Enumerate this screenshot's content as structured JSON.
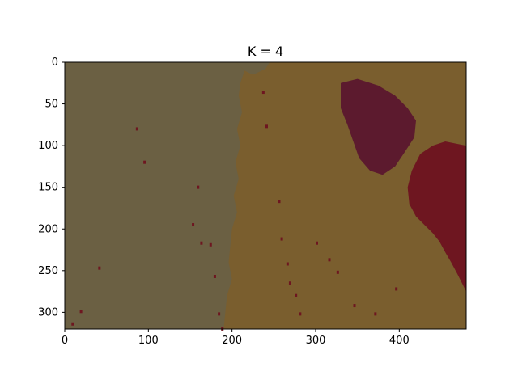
{
  "chart_data": {
    "type": "heatmap",
    "title": "K = 4",
    "xlabel": "",
    "ylabel": "",
    "xlim": [
      0,
      480
    ],
    "ylim": [
      320,
      0
    ],
    "y_axis_inverted": true,
    "x_ticks": [
      0,
      100,
      200,
      300,
      400
    ],
    "y_ticks": [
      0,
      50,
      100,
      150,
      200,
      250,
      300
    ],
    "x_tick_labels": [
      "0",
      "100",
      "200",
      "300",
      "400"
    ],
    "y_tick_labels": [
      "0",
      "50",
      "100",
      "150",
      "200",
      "250",
      "300"
    ],
    "grid": false,
    "legend": "none",
    "cluster_colors": {
      "cluster_1": "#6b6043",
      "cluster_2": "#7a5e2e",
      "cluster_3": "#6e1620",
      "cluster_4": "#5c1a2e"
    },
    "description_regions": [
      {
        "cluster": "cluster_1",
        "x": [
          0,
          200
        ],
        "y": [
          0,
          320
        ]
      },
      {
        "cluster": "cluster_2",
        "x": [
          200,
          480
        ],
        "y": [
          0,
          320
        ]
      },
      {
        "cluster": "cluster_3",
        "x": [
          410,
          480
        ],
        "y": [
          90,
          280
        ]
      },
      {
        "cluster": "cluster_4",
        "x": [
          330,
          410
        ],
        "y": [
          20,
          140
        ]
      }
    ]
  }
}
